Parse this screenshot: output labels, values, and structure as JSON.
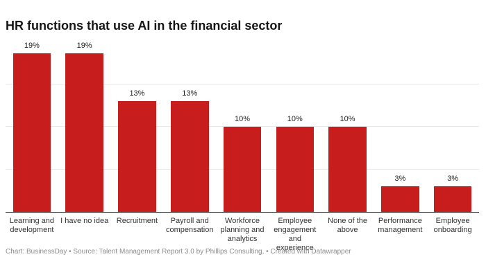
{
  "chart_data": {
    "type": "bar",
    "title": "HR functions that use AI in the financial sector",
    "categories": [
      "Learning and development",
      "I have no idea",
      "Recruitment",
      "Payroll and compensation",
      "Workforce planning and analytics",
      "Employee engagement and experience",
      "None of the above",
      "Performance management",
      "Employee onboarding"
    ],
    "values": [
      19,
      19,
      13,
      13,
      10,
      10,
      10,
      3,
      3
    ],
    "value_labels": [
      "19%",
      "19%",
      "13%",
      "13%",
      "10%",
      "10%",
      "10%",
      "3%",
      "3%"
    ],
    "xlabel": "",
    "ylabel": "",
    "ylim": [
      0,
      20
    ],
    "gridlines": [
      5,
      10,
      15
    ],
    "grid": "on",
    "legend": "none"
  },
  "footer": {
    "text": "Chart: BusinessDay • Source: Talent Management Report 3.0 by Phillips Consulting, • Created with Datawrapper"
  },
  "colors": {
    "bar": "#c71e1d",
    "title": "#161616",
    "axis": "#2b2b2b",
    "gridline": "#e8e8e8",
    "category_label": "#333333",
    "value_label": "#1d1d1d",
    "footer": "#8c8c8c",
    "background": "#ffffff"
  }
}
